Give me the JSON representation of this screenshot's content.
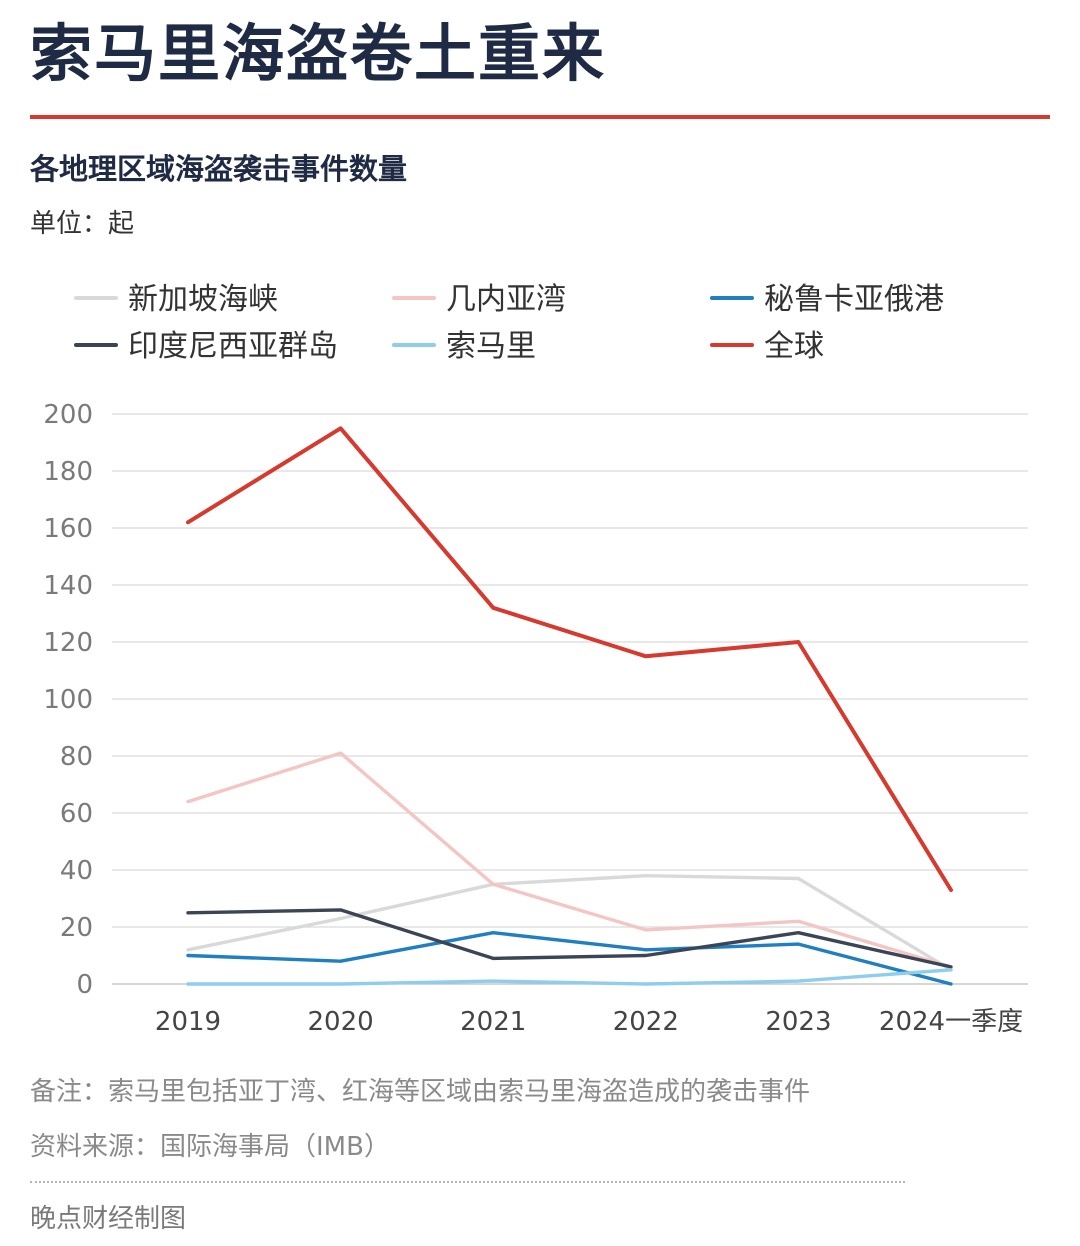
{
  "header": {
    "title": "索马里海盗卷土重来",
    "subtitle": "各地理区域海盗袭击事件数量",
    "unit": "单位：起"
  },
  "colors": {
    "accent": "#d63a2f",
    "text_dark": "#1f2a44",
    "grid": "#d9d9d9"
  },
  "chart_data": {
    "type": "line",
    "title": "各地理区域海盗袭击事件数量",
    "ylabel": "单位：起",
    "xlabel": "",
    "categories": [
      "2019",
      "2020",
      "2021",
      "2022",
      "2023",
      "2024一季度"
    ],
    "ylim": [
      0,
      200
    ],
    "yticks": [
      0,
      20,
      40,
      60,
      80,
      100,
      120,
      140,
      160,
      180,
      200
    ],
    "grid": true,
    "legend_position": "top",
    "series": [
      {
        "name": "新加坡海峡",
        "color": "#d9d9d9",
        "values": [
          12,
          23,
          35,
          38,
          37,
          5
        ]
      },
      {
        "name": "几内亚湾",
        "color": "#f3c6c4",
        "values": [
          64,
          81,
          35,
          19,
          22,
          6
        ]
      },
      {
        "name": "秘鲁卡亚俄港",
        "color": "#1f7fc0",
        "values": [
          10,
          8,
          18,
          12,
          14,
          0
        ]
      },
      {
        "name": "印度尼西亚群岛",
        "color": "#3b4556",
        "values": [
          25,
          26,
          9,
          10,
          18,
          6
        ]
      },
      {
        "name": "索马里",
        "color": "#8fcdec",
        "values": [
          0,
          0,
          1,
          0,
          1,
          5
        ]
      },
      {
        "name": "全球",
        "color": "#d63a2f",
        "values": [
          162,
          195,
          132,
          115,
          120,
          33
        ]
      }
    ]
  },
  "footer": {
    "note": "备注：索马里包括亚丁湾、红海等区域由索马里海盗造成的袭击事件",
    "source": "资料来源：国际海事局（IMB）",
    "credit": "晚点财经制图"
  }
}
